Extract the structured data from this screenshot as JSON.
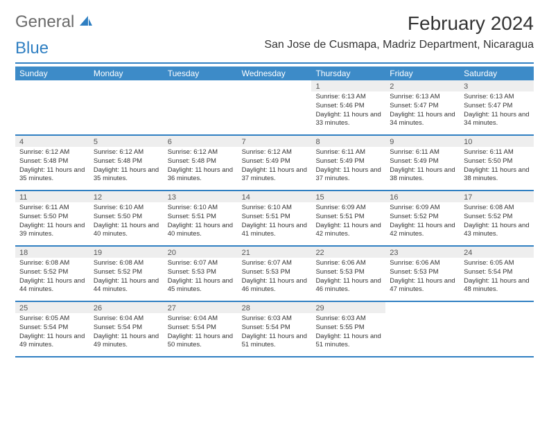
{
  "logo": {
    "general": "General",
    "blue": "Blue"
  },
  "title": "February 2024",
  "location": "San Jose de Cusmapa, Madriz Department, Nicaragua",
  "colors": {
    "header_bg": "#3d8bc8",
    "rule": "#2f7fc2",
    "daynum_bg": "#eeeeee",
    "text": "#333333",
    "logo_gray": "#6a6a6a",
    "logo_blue": "#2f7fc2"
  },
  "day_names": [
    "Sunday",
    "Monday",
    "Tuesday",
    "Wednesday",
    "Thursday",
    "Friday",
    "Saturday"
  ],
  "weeks": [
    [
      null,
      null,
      null,
      null,
      {
        "n": "1",
        "sr": "6:13 AM",
        "ss": "5:46 PM",
        "dl": "11 hours and 33 minutes."
      },
      {
        "n": "2",
        "sr": "6:13 AM",
        "ss": "5:47 PM",
        "dl": "11 hours and 34 minutes."
      },
      {
        "n": "3",
        "sr": "6:13 AM",
        "ss": "5:47 PM",
        "dl": "11 hours and 34 minutes."
      }
    ],
    [
      {
        "n": "4",
        "sr": "6:12 AM",
        "ss": "5:48 PM",
        "dl": "11 hours and 35 minutes."
      },
      {
        "n": "5",
        "sr": "6:12 AM",
        "ss": "5:48 PM",
        "dl": "11 hours and 35 minutes."
      },
      {
        "n": "6",
        "sr": "6:12 AM",
        "ss": "5:48 PM",
        "dl": "11 hours and 36 minutes."
      },
      {
        "n": "7",
        "sr": "6:12 AM",
        "ss": "5:49 PM",
        "dl": "11 hours and 37 minutes."
      },
      {
        "n": "8",
        "sr": "6:11 AM",
        "ss": "5:49 PM",
        "dl": "11 hours and 37 minutes."
      },
      {
        "n": "9",
        "sr": "6:11 AM",
        "ss": "5:49 PM",
        "dl": "11 hours and 38 minutes."
      },
      {
        "n": "10",
        "sr": "6:11 AM",
        "ss": "5:50 PM",
        "dl": "11 hours and 38 minutes."
      }
    ],
    [
      {
        "n": "11",
        "sr": "6:11 AM",
        "ss": "5:50 PM",
        "dl": "11 hours and 39 minutes."
      },
      {
        "n": "12",
        "sr": "6:10 AM",
        "ss": "5:50 PM",
        "dl": "11 hours and 40 minutes."
      },
      {
        "n": "13",
        "sr": "6:10 AM",
        "ss": "5:51 PM",
        "dl": "11 hours and 40 minutes."
      },
      {
        "n": "14",
        "sr": "6:10 AM",
        "ss": "5:51 PM",
        "dl": "11 hours and 41 minutes."
      },
      {
        "n": "15",
        "sr": "6:09 AM",
        "ss": "5:51 PM",
        "dl": "11 hours and 42 minutes."
      },
      {
        "n": "16",
        "sr": "6:09 AM",
        "ss": "5:52 PM",
        "dl": "11 hours and 42 minutes."
      },
      {
        "n": "17",
        "sr": "6:08 AM",
        "ss": "5:52 PM",
        "dl": "11 hours and 43 minutes."
      }
    ],
    [
      {
        "n": "18",
        "sr": "6:08 AM",
        "ss": "5:52 PM",
        "dl": "11 hours and 44 minutes."
      },
      {
        "n": "19",
        "sr": "6:08 AM",
        "ss": "5:52 PM",
        "dl": "11 hours and 44 minutes."
      },
      {
        "n": "20",
        "sr": "6:07 AM",
        "ss": "5:53 PM",
        "dl": "11 hours and 45 minutes."
      },
      {
        "n": "21",
        "sr": "6:07 AM",
        "ss": "5:53 PM",
        "dl": "11 hours and 46 minutes."
      },
      {
        "n": "22",
        "sr": "6:06 AM",
        "ss": "5:53 PM",
        "dl": "11 hours and 46 minutes."
      },
      {
        "n": "23",
        "sr": "6:06 AM",
        "ss": "5:53 PM",
        "dl": "11 hours and 47 minutes."
      },
      {
        "n": "24",
        "sr": "6:05 AM",
        "ss": "5:54 PM",
        "dl": "11 hours and 48 minutes."
      }
    ],
    [
      {
        "n": "25",
        "sr": "6:05 AM",
        "ss": "5:54 PM",
        "dl": "11 hours and 49 minutes."
      },
      {
        "n": "26",
        "sr": "6:04 AM",
        "ss": "5:54 PM",
        "dl": "11 hours and 49 minutes."
      },
      {
        "n": "27",
        "sr": "6:04 AM",
        "ss": "5:54 PM",
        "dl": "11 hours and 50 minutes."
      },
      {
        "n": "28",
        "sr": "6:03 AM",
        "ss": "5:54 PM",
        "dl": "11 hours and 51 minutes."
      },
      {
        "n": "29",
        "sr": "6:03 AM",
        "ss": "5:55 PM",
        "dl": "11 hours and 51 minutes."
      },
      null,
      null
    ]
  ],
  "labels": {
    "sunrise": "Sunrise: ",
    "sunset": "Sunset: ",
    "daylight": "Daylight: "
  }
}
